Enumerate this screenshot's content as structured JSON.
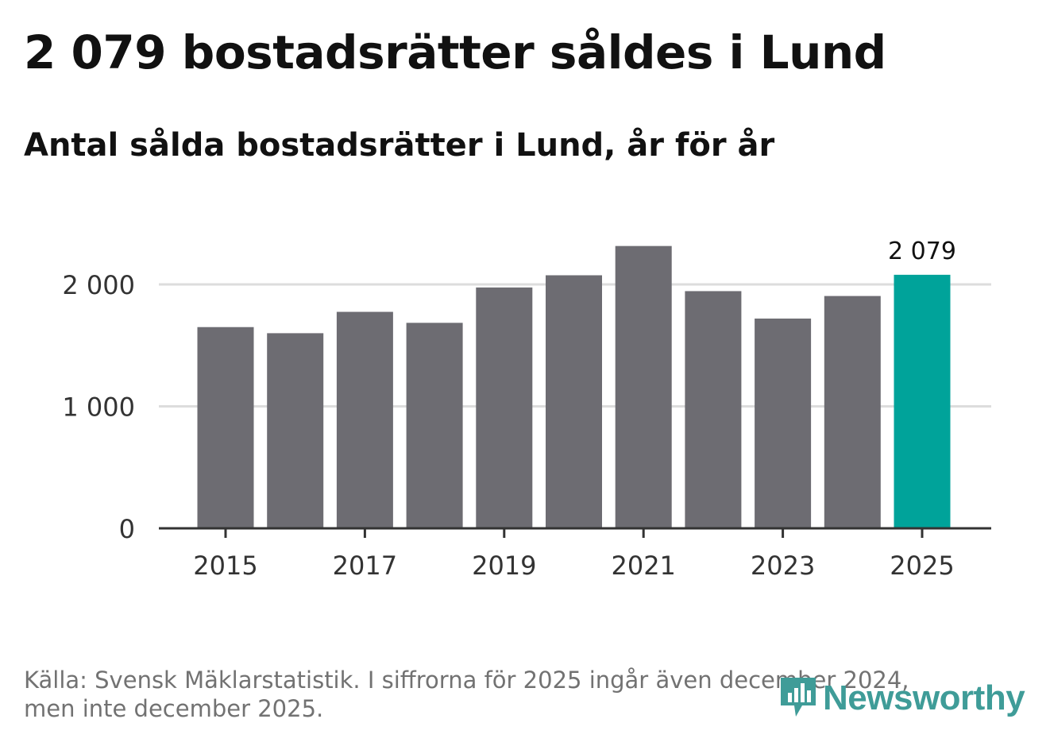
{
  "header": {
    "title": "2 079 bostadsrätter såldes i Lund",
    "subtitle": "Antal sålda bostadsrätter i Lund, år för år"
  },
  "footer": {
    "source_line1": "Källa: Svensk Mäklarstatistik. I siffrorna för 2025 ingår även december 2024,",
    "source_line2": "men inte december 2025."
  },
  "brand": {
    "name": "Newsworthy",
    "color": "#3f9c98"
  },
  "colors": {
    "bar": "#6d6c72",
    "highlight": "#00a39a",
    "grid": "#dddddd",
    "axis": "#333333"
  },
  "chart_data": {
    "type": "bar",
    "title": "Antal sålda bostadsrätter i Lund, år för år",
    "xlabel": "",
    "ylabel": "",
    "categories": [
      "2015",
      "2016",
      "2017",
      "2018",
      "2019",
      "2020",
      "2021",
      "2022",
      "2023",
      "2024",
      "2025"
    ],
    "values": [
      1650,
      1600,
      1775,
      1685,
      1975,
      2075,
      2315,
      1945,
      1720,
      1905,
      2079
    ],
    "x_tick_labels": [
      "2015",
      "2017",
      "2019",
      "2021",
      "2023",
      "2025"
    ],
    "y_ticks": [
      0,
      1000,
      2000
    ],
    "y_tick_labels": [
      "0",
      "1 000",
      "2 000"
    ],
    "ylim": [
      0,
      2400
    ],
    "highlight_index": 10,
    "highlight_label": "2 079",
    "grid": true
  }
}
